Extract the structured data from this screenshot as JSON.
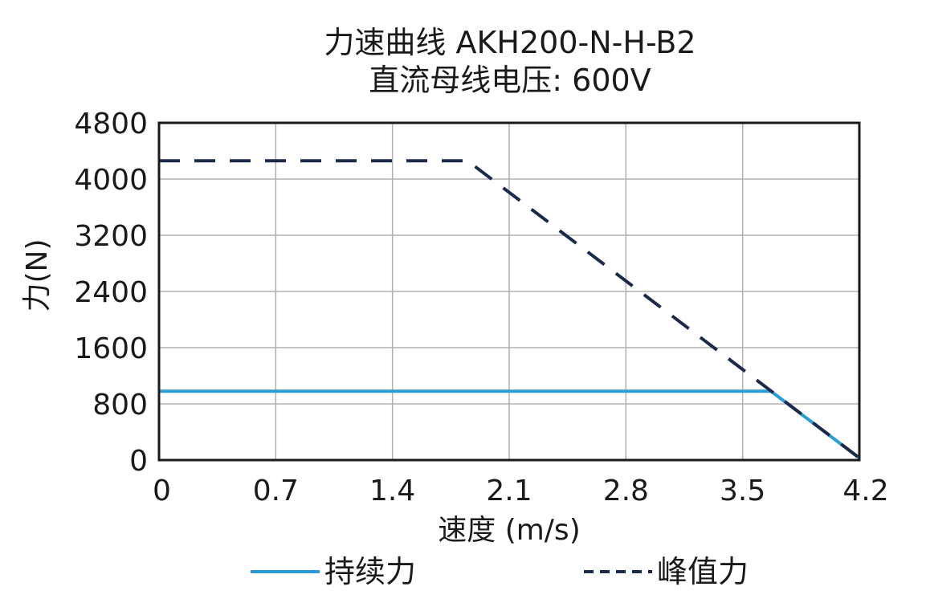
{
  "chart_data": {
    "type": "line",
    "title": "力速曲线 AKH200-N-H-B2",
    "subtitle": "直流母线电压: 600V",
    "xlabel": "速度 (m/s)",
    "ylabel": "力(N)",
    "xlim": [
      0,
      4.2
    ],
    "ylim": [
      0,
      4800
    ],
    "xticks": [
      "0",
      "0.7",
      "1.4",
      "2.1",
      "2.8",
      "3.5",
      "4.2"
    ],
    "xtick_values": [
      0,
      0.7,
      1.4,
      2.1,
      2.8,
      3.5,
      4.2
    ],
    "yticks": [
      "0",
      "800",
      "1600",
      "2400",
      "3200",
      "4000",
      "4800"
    ],
    "ytick_values": [
      0,
      800,
      1600,
      2400,
      3200,
      4000,
      4800
    ],
    "grid": true,
    "legend_position": "bottom",
    "series": [
      {
        "name": "持续力",
        "color": "#2a9bd5",
        "style": "solid",
        "x": [
          0,
          3.67,
          4.2
        ],
        "y": [
          980,
          980,
          30
        ]
      },
      {
        "name": "峰值力",
        "color": "#1b2a4a",
        "style": "dashed",
        "x": [
          0,
          1.85,
          4.2
        ],
        "y": [
          4260,
          4260,
          30
        ]
      }
    ]
  }
}
